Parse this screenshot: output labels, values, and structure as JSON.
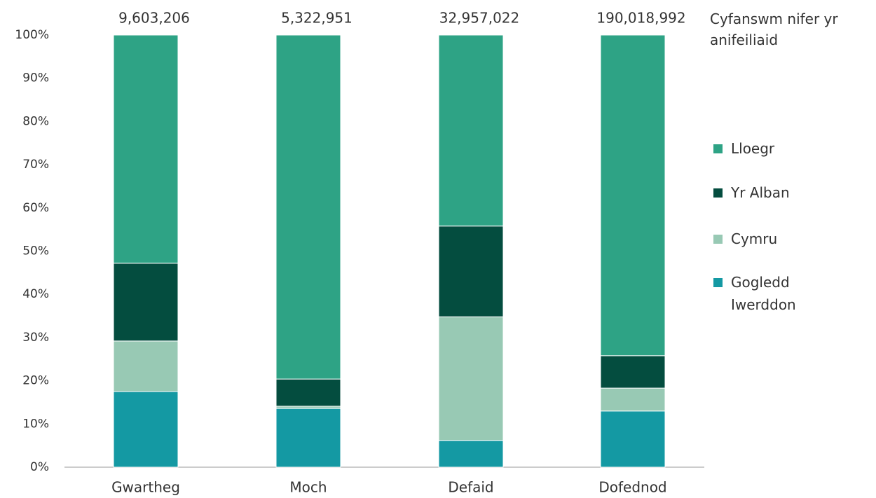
{
  "chart_data": {
    "type": "stacked_bar",
    "categories": [
      "Gwartheg",
      "Moch",
      "Defaid",
      "Dofednod"
    ],
    "series": [
      {
        "name": "Gogledd Iwerddon",
        "color": "#1499a3",
        "values": [
          17.5,
          13.6,
          6.2,
          13.0
        ]
      },
      {
        "name": "Cymru",
        "color": "#98c9b4",
        "values": [
          11.7,
          0.5,
          28.6,
          5.3
        ]
      },
      {
        "name": "Yr Alban",
        "color": "#044d3f",
        "values": [
          18.0,
          6.3,
          21.0,
          7.5
        ]
      },
      {
        "name": "Lloegr",
        "color": "#2ea385",
        "values": [
          52.8,
          79.6,
          44.2,
          74.2
        ]
      }
    ],
    "totals": {
      "name": "Cyfanswm nifer yr anifeiliaid",
      "values": [
        9603206,
        5322951,
        32957022,
        190018992
      ],
      "value_labels": [
        "9,603,206",
        "5,322,951",
        "32,957,022",
        "190,018,992"
      ]
    },
    "ylim": [
      0,
      100
    ],
    "yticks": [
      {
        "value": 0,
        "label": "0%"
      },
      {
        "value": 10,
        "label": "10%"
      },
      {
        "value": 20,
        "label": "20%"
      },
      {
        "value": 30,
        "label": "30%"
      },
      {
        "value": 40,
        "label": "40%"
      },
      {
        "value": 50,
        "label": "50%"
      },
      {
        "value": 60,
        "label": "60%"
      },
      {
        "value": 70,
        "label": "70%"
      },
      {
        "value": 80,
        "label": "80%"
      },
      {
        "value": 90,
        "label": "90%"
      },
      {
        "value": 100,
        "label": "100%"
      }
    ],
    "grid": false,
    "legend": "right"
  }
}
